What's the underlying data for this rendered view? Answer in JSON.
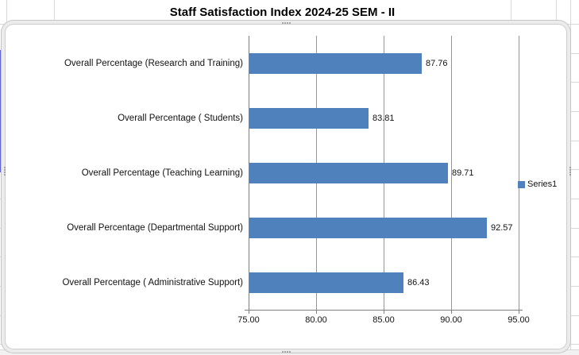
{
  "spreadsheet": {
    "title_cell_text": "Staff Satisfaction Index 2024-25 SEM - II"
  },
  "legend": {
    "entries": [
      "Series1"
    ]
  },
  "colors": {
    "bar": "#4f81bd",
    "chart_gridline": "#969696",
    "axis": "#808080",
    "sheet_gridline": "#d8d8d8",
    "range_highlight": "#6666cf"
  },
  "chart_data": {
    "type": "bar",
    "orientation": "horizontal",
    "title": "Staff Satisfaction Index 2024-25 SEM - II",
    "categories": [
      "Overall Percentage (Research and Training)",
      "Overall Percentage ( Students)",
      "Overall Percentage (Teaching Learning)",
      "Overall Percentage (Departmental Support)",
      "Overall Percentage ( Administrative Support)"
    ],
    "series": [
      {
        "name": "Series1",
        "values": [
          87.76,
          83.81,
          89.71,
          92.57,
          86.43
        ]
      }
    ],
    "data_labels": [
      "87.76",
      "83.81",
      "89.71",
      "92.57",
      "86.43"
    ],
    "xlabel": "",
    "ylabel": "",
    "xlim": [
      75,
      95
    ],
    "x_tick_labels": [
      "75.00",
      "80.00",
      "85.00",
      "90.00",
      "95.00"
    ],
    "x_tick_values": [
      75,
      80,
      85,
      90,
      95
    ],
    "grid": true,
    "legend_position": "right"
  }
}
